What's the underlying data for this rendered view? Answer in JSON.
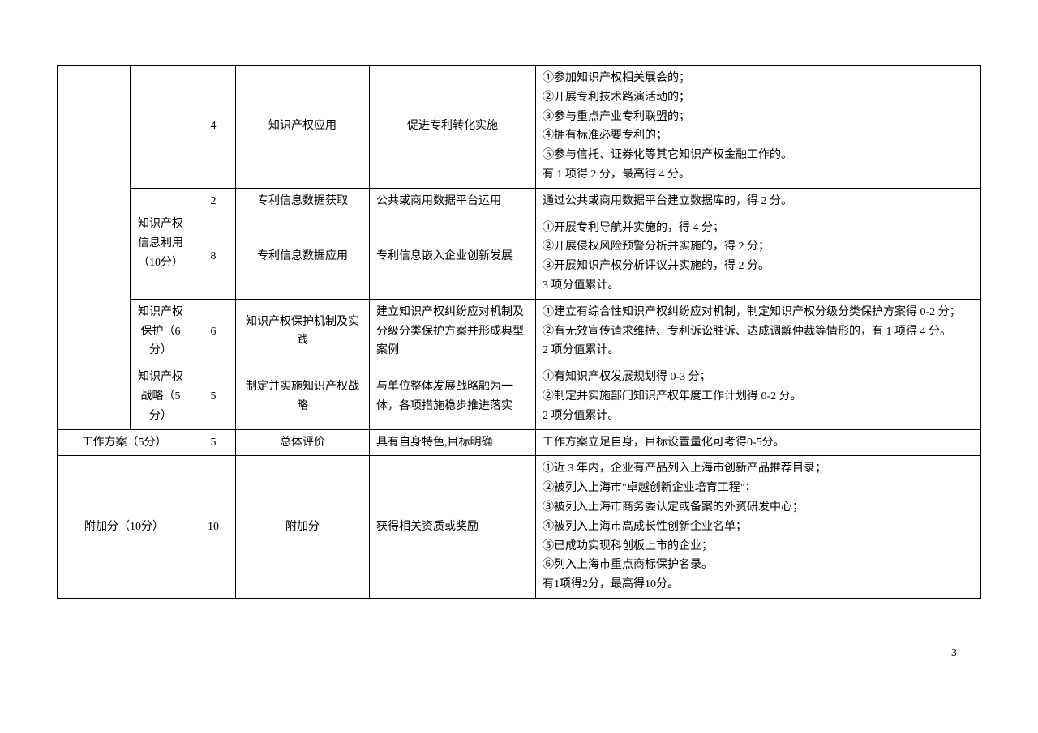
{
  "pageNumber": "3",
  "table": {
    "categoryCol2": {
      "infoUse": "知识产权信息利用（10分）",
      "protection": "知识产权保护（6分）",
      "strategy": "知识产权战略（5分）"
    },
    "workPlanLabel": "工作方案（5分）",
    "bonusLabel": "附加分（10分）",
    "rows": [
      {
        "score": "4",
        "item": "知识产权应用",
        "desc": "促进专利转化实施",
        "criteria": "①参加知识产权相关展会的；\n②开展专利技术路演活动的；\n③参与重点产业专利联盟的；\n④拥有标准必要专利的；\n⑤参与信托、证券化等其它知识产权金融工作的。\n有 1 项得 2 分，最高得 4 分。"
      },
      {
        "score": "2",
        "item": "专利信息数据获取",
        "desc": "公共或商用数据平台运用",
        "criteria": "通过公共或商用数据平台建立数据库的，得 2 分。"
      },
      {
        "score": "8",
        "item": "专利信息数据应用",
        "desc": "专利信息嵌入企业创新发展",
        "criteria": "①开展专利导航并实施的，得 4 分；\n②开展侵权风险预警分析并实施的，得 2 分；\n③开展知识产权分析评议并实施的，得 2 分。\n3 项分值累计。"
      },
      {
        "score": "6",
        "item": "知识产权保护机制及实践",
        "desc": "建立知识产权纠纷应对机制及分级分类保护方案并形成典型案例",
        "criteria": "①建立有综合性知识产权纠纷应对机制，制定知识产权分级分类保护方案得 0-2 分；\n②有无效宣传请求维持、专利诉讼胜诉、达成调解仲裁等情形的，有 1 项得 4 分。\n2 项分值累计。"
      },
      {
        "score": "5",
        "item": "制定并实施知识产权战略",
        "desc": "与单位整体发展战略融为一体，各项措施稳步推进落实",
        "criteria": "①有知识产权发展规划得 0-3 分；\n②制定并实施部门知识产权年度工作计划得 0-2 分。\n2 项分值累计。"
      },
      {
        "score": "5",
        "item": "总体评价",
        "desc": "具有自身特色,目标明确",
        "criteria": "工作方案立足自身，目标设置量化可考得0-5分。"
      },
      {
        "score": "10",
        "item": "附加分",
        "desc": "获得相关资质或奖励",
        "criteria": "①近 3 年内，企业有产品列入上海市创新产品推荐目录；\n②被列入上海市\"卓越创新企业培育工程\"；\n③被列入上海市商务委认定或备案的外资研发中心；\n④被列入上海市高成长性创新企业名单；\n⑤已成功实现科创板上市的企业；\n⑥列入上海市重点商标保护名录。\n有1项得2分，最高得10分。"
      }
    ]
  }
}
